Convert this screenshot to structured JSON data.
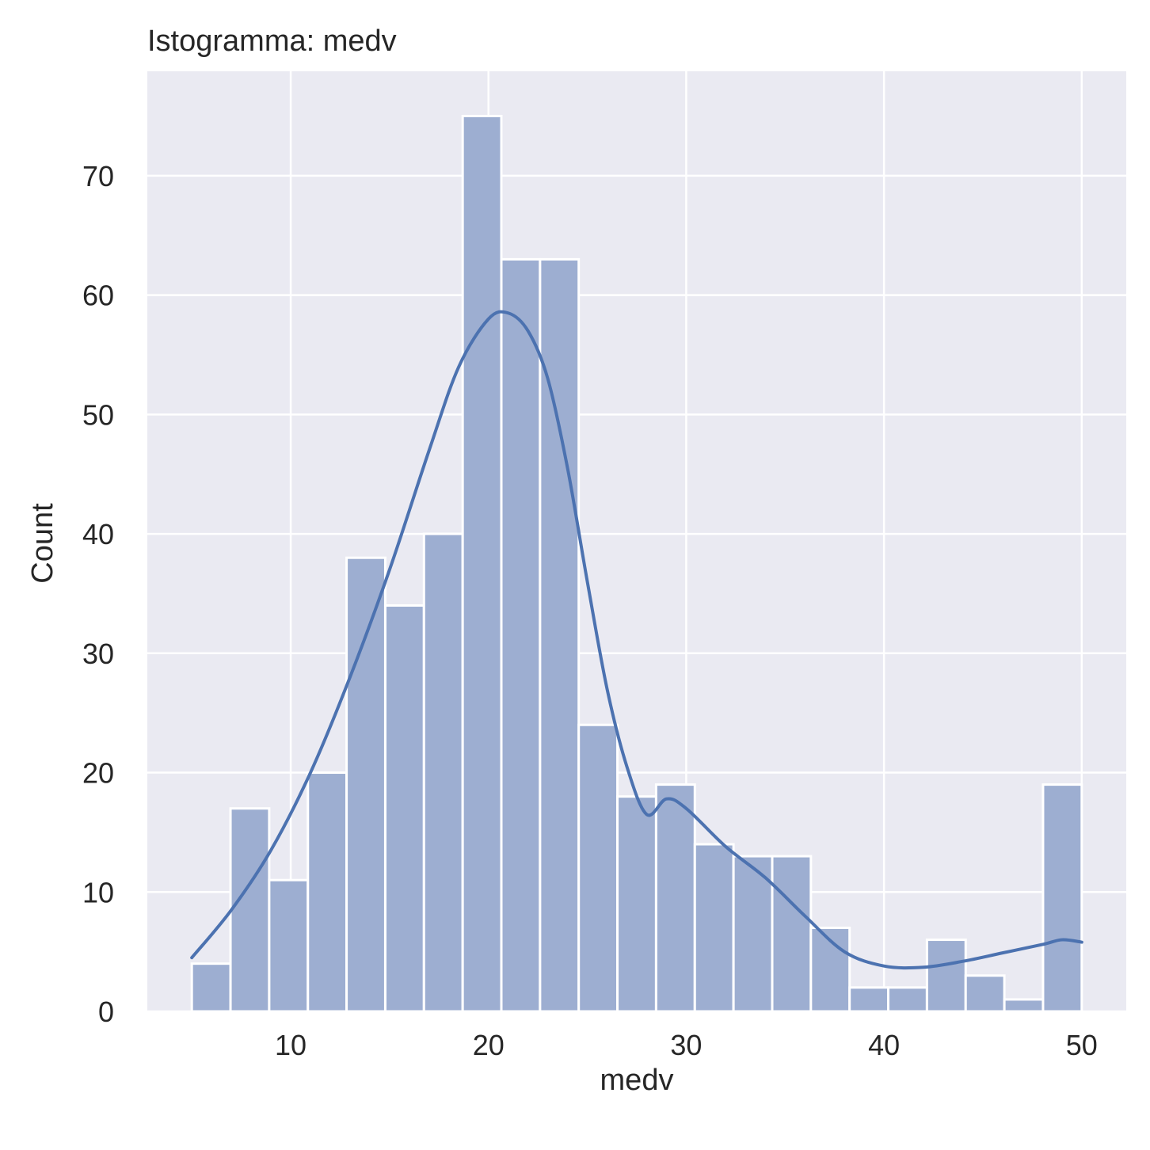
{
  "chart_data": {
    "type": "bar",
    "title": "Istogramma: medv",
    "xlabel": "medv",
    "ylabel": "Count",
    "xlim": [
      2.75,
      52.25
    ],
    "ylim": [
      0,
      78.75
    ],
    "xticks": [
      10,
      20,
      30,
      40,
      50
    ],
    "yticks": [
      0,
      10,
      20,
      30,
      40,
      50,
      60,
      70
    ],
    "grid": true,
    "bin_edges": [
      5.0,
      6.957,
      8.913,
      10.87,
      12.826,
      14.783,
      16.739,
      18.696,
      20.652,
      22.609,
      24.565,
      26.522,
      28.478,
      30.435,
      32.391,
      34.348,
      36.304,
      38.261,
      40.217,
      42.174,
      44.13,
      46.087,
      48.043,
      50.0
    ],
    "values": [
      4,
      17,
      11,
      20,
      38,
      34,
      40,
      75,
      63,
      63,
      24,
      18,
      19,
      14,
      13,
      13,
      7,
      2,
      2,
      6,
      3,
      1,
      19
    ],
    "kde": {
      "x": [
        5,
        7,
        9,
        11,
        13,
        15,
        17,
        18.5,
        20,
        21,
        22,
        23,
        24,
        25,
        26,
        27,
        28,
        29,
        30,
        32,
        34,
        36,
        38,
        40,
        42,
        44,
        46,
        48,
        49,
        50
      ],
      "y": [
        4.5,
        8.5,
        13.5,
        20,
        28,
        37,
        47,
        54,
        58,
        58.5,
        57,
        53,
        45.5,
        36,
        27,
        20.5,
        16.5,
        17.8,
        17,
        13.8,
        11.2,
        8,
        5,
        3.8,
        3.7,
        4.2,
        4.9,
        5.6,
        6,
        5.8
      ]
    },
    "colors": {
      "bar_fill": "#9daed1",
      "bar_edge": "#ffffff",
      "kde_line": "#4c72b0",
      "plot_bg": "#eaeaf2",
      "grid": "#ffffff"
    }
  }
}
